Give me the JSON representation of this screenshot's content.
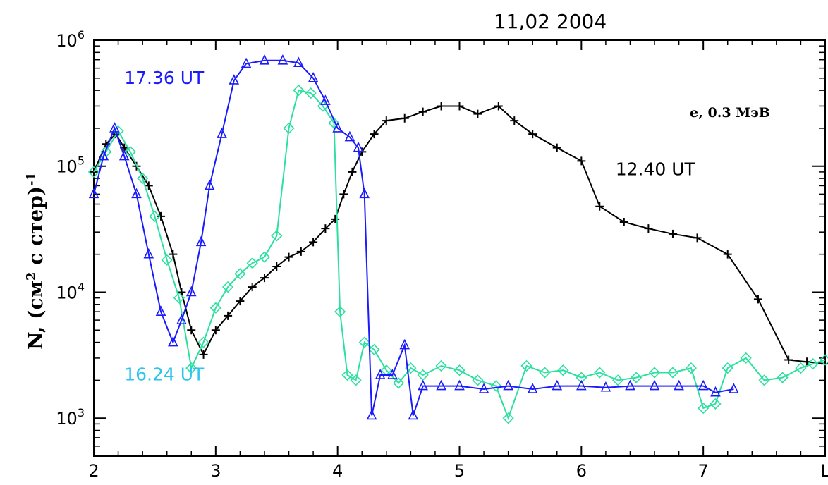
{
  "chart_data": {
    "type": "line",
    "title": "11,02 2004",
    "ylabel_main": "N, (см",
    "ylabel_sup": "2",
    "ylabel_mid": " с стер)",
    "ylabel_exp": "-1",
    "particle_label": "e, 0.3 МэВ",
    "y_scale": "log",
    "xlim": [
      2,
      8
    ],
    "ylim": [
      500,
      1000000
    ],
    "x_ticks": [
      {
        "value": 2,
        "label": "2"
      },
      {
        "value": 3,
        "label": "3"
      },
      {
        "value": 4,
        "label": "4"
      },
      {
        "value": 5,
        "label": "5"
      },
      {
        "value": 6,
        "label": "6"
      },
      {
        "value": 7,
        "label": "7"
      },
      {
        "value": 8,
        "label": "L"
      }
    ],
    "y_ticks": [
      {
        "value": 1000,
        "base": "10",
        "exp": "3"
      },
      {
        "value": 10000,
        "base": "10",
        "exp": "4"
      },
      {
        "value": 100000,
        "base": "10",
        "exp": "5"
      },
      {
        "value": 1000000,
        "base": "10",
        "exp": "6"
      }
    ],
    "series": [
      {
        "name": "12.40 UT",
        "color": "#000000",
        "marker": "plus",
        "points": [
          [
            2.0,
            90000
          ],
          [
            2.1,
            150000
          ],
          [
            2.18,
            180000
          ],
          [
            2.25,
            140000
          ],
          [
            2.35,
            100000
          ],
          [
            2.45,
            70000
          ],
          [
            2.55,
            40000
          ],
          [
            2.65,
            20000
          ],
          [
            2.72,
            10000
          ],
          [
            2.8,
            5000
          ],
          [
            2.9,
            3200
          ],
          [
            3.0,
            5000
          ],
          [
            3.1,
            6500
          ],
          [
            3.2,
            8500
          ],
          [
            3.3,
            11000
          ],
          [
            3.4,
            13000
          ],
          [
            3.5,
            16000
          ],
          [
            3.6,
            19000
          ],
          [
            3.7,
            21000
          ],
          [
            3.8,
            25000
          ],
          [
            3.9,
            32000
          ],
          [
            3.98,
            38000
          ],
          [
            4.05,
            60000
          ],
          [
            4.12,
            90000
          ],
          [
            4.2,
            130000
          ],
          [
            4.3,
            180000
          ],
          [
            4.4,
            230000
          ],
          [
            4.55,
            240000
          ],
          [
            4.7,
            270000
          ],
          [
            4.85,
            300000
          ],
          [
            5.0,
            300000
          ],
          [
            5.15,
            260000
          ],
          [
            5.32,
            300000
          ],
          [
            5.45,
            230000
          ],
          [
            5.6,
            180000
          ],
          [
            5.8,
            140000
          ],
          [
            6.0,
            110000
          ],
          [
            6.15,
            48000
          ],
          [
            6.35,
            36000
          ],
          [
            6.55,
            32000
          ],
          [
            6.75,
            29000
          ],
          [
            6.95,
            27000
          ],
          [
            7.2,
            20000
          ],
          [
            7.45,
            8800
          ],
          [
            7.7,
            2900
          ],
          [
            7.85,
            2800
          ],
          [
            8.0,
            2700
          ]
        ]
      },
      {
        "name": "17.36 UT",
        "color": "#1a1aff",
        "marker": "triangle",
        "points": [
          [
            2.0,
            60000
          ],
          [
            2.08,
            120000
          ],
          [
            2.17,
            200000
          ],
          [
            2.25,
            120000
          ],
          [
            2.35,
            60000
          ],
          [
            2.45,
            20000
          ],
          [
            2.55,
            7000
          ],
          [
            2.65,
            4000
          ],
          [
            2.72,
            6000
          ],
          [
            2.8,
            10000
          ],
          [
            2.88,
            25000
          ],
          [
            2.95,
            70000
          ],
          [
            3.05,
            180000
          ],
          [
            3.15,
            480000
          ],
          [
            3.25,
            650000
          ],
          [
            3.4,
            690000
          ],
          [
            3.55,
            690000
          ],
          [
            3.68,
            660000
          ],
          [
            3.8,
            500000
          ],
          [
            3.9,
            330000
          ],
          [
            4.0,
            200000
          ],
          [
            4.1,
            170000
          ],
          [
            4.17,
            140000
          ],
          [
            4.22,
            60000
          ],
          [
            4.28,
            1050
          ],
          [
            4.35,
            2200
          ],
          [
            4.45,
            2200
          ],
          [
            4.55,
            3800
          ],
          [
            4.62,
            1050
          ],
          [
            4.7,
            1800
          ],
          [
            4.85,
            1800
          ],
          [
            5.0,
            1800
          ],
          [
            5.2,
            1700
          ],
          [
            5.4,
            1800
          ],
          [
            5.6,
            1700
          ],
          [
            5.8,
            1800
          ],
          [
            6.0,
            1800
          ],
          [
            6.2,
            1750
          ],
          [
            6.4,
            1800
          ],
          [
            6.6,
            1800
          ],
          [
            6.8,
            1800
          ],
          [
            7.0,
            1800
          ],
          [
            7.1,
            1600
          ],
          [
            7.25,
            1700
          ]
        ]
      },
      {
        "name": "16.24 UT",
        "color": "#2de0a0",
        "marker": "diamond",
        "points": [
          [
            2.0,
            90000
          ],
          [
            2.1,
            130000
          ],
          [
            2.2,
            190000
          ],
          [
            2.3,
            130000
          ],
          [
            2.4,
            80000
          ],
          [
            2.5,
            40000
          ],
          [
            2.6,
            18000
          ],
          [
            2.7,
            9000
          ],
          [
            2.8,
            2500
          ],
          [
            2.9,
            4000
          ],
          [
            3.0,
            7500
          ],
          [
            3.1,
            11000
          ],
          [
            3.2,
            14000
          ],
          [
            3.3,
            17000
          ],
          [
            3.4,
            19000
          ],
          [
            3.5,
            28000
          ],
          [
            3.6,
            200000
          ],
          [
            3.68,
            400000
          ],
          [
            3.78,
            380000
          ],
          [
            3.88,
            300000
          ],
          [
            3.97,
            220000
          ],
          [
            4.02,
            7000
          ],
          [
            4.08,
            2200
          ],
          [
            4.15,
            2000
          ],
          [
            4.22,
            4000
          ],
          [
            4.3,
            3500
          ],
          [
            4.4,
            2400
          ],
          [
            4.5,
            1900
          ],
          [
            4.6,
            2500
          ],
          [
            4.7,
            2200
          ],
          [
            4.85,
            2600
          ],
          [
            5.0,
            2400
          ],
          [
            5.15,
            2000
          ],
          [
            5.3,
            1800
          ],
          [
            5.4,
            1000
          ],
          [
            5.55,
            2600
          ],
          [
            5.7,
            2300
          ],
          [
            5.85,
            2400
          ],
          [
            6.0,
            2100
          ],
          [
            6.15,
            2300
          ],
          [
            6.3,
            2000
          ],
          [
            6.45,
            2100
          ],
          [
            6.6,
            2300
          ],
          [
            6.75,
            2300
          ],
          [
            6.9,
            2500
          ],
          [
            7.0,
            1200
          ],
          [
            7.1,
            1300
          ],
          [
            7.2,
            2500
          ],
          [
            7.35,
            3000
          ],
          [
            7.5,
            2000
          ],
          [
            7.65,
            2100
          ],
          [
            7.8,
            2500
          ],
          [
            7.9,
            2700
          ],
          [
            8.0,
            2900
          ]
        ]
      }
    ],
    "annotations": [
      {
        "text": "17.36 UT",
        "color": "#1a1aff",
        "x": 2.25,
        "y": 450000
      },
      {
        "text": "12.40 UT",
        "color": "#000000",
        "x": 6.28,
        "y": 85000
      },
      {
        "text": "16.24 UT",
        "color": "#29c4f0",
        "x": 2.25,
        "y": 2000
      }
    ],
    "grid": false
  }
}
